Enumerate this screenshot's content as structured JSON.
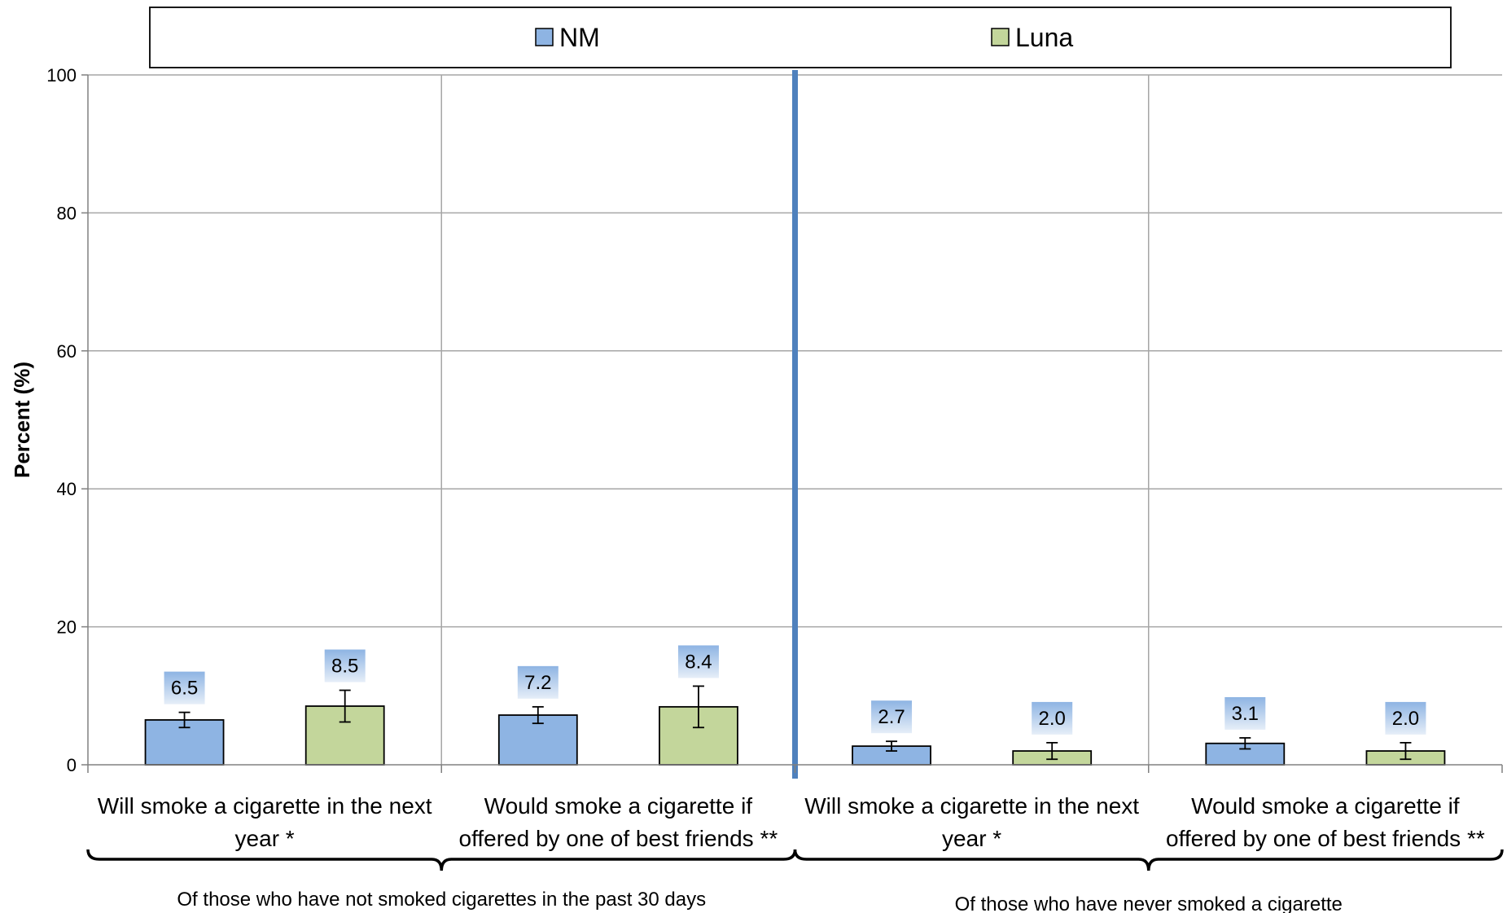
{
  "chart_data": {
    "type": "bar",
    "ylabel": "Percent (%)",
    "ylim": [
      0,
      100
    ],
    "yticks": [
      0,
      20,
      40,
      60,
      80,
      100
    ],
    "grid": true,
    "legend_position": "top",
    "categories": [
      [
        "Will smoke a cigarette in the next",
        "year *"
      ],
      [
        "Would smoke a cigarette if",
        "offered by one of best friends **"
      ],
      [
        "Will smoke a cigarette in the next",
        "year *"
      ],
      [
        "Would smoke a cigarette if",
        "offered by one of best friends **"
      ]
    ],
    "groups": [
      {
        "label": "Of those who have not smoked cigarettes in the past 30 days",
        "categories": [
          0,
          1
        ]
      },
      {
        "label": "Of those who have never smoked a cigarette",
        "categories": [
          2,
          3
        ]
      }
    ],
    "series": [
      {
        "name": "NM",
        "color": "#8EB4E3",
        "values": [
          6.5,
          7.2,
          2.7,
          3.1
        ],
        "labels": [
          "6.5",
          "7.2",
          "2.7",
          "3.1"
        ],
        "error_low": [
          5.4,
          6.0,
          2.0,
          2.3
        ],
        "error_high": [
          7.6,
          8.4,
          3.4,
          3.9
        ]
      },
      {
        "name": "Luna",
        "color": "#C3D69B",
        "values": [
          8.5,
          8.4,
          2.0,
          2.0
        ],
        "labels": [
          "8.5",
          "8.4",
          "2.0",
          "2.0"
        ],
        "error_low": [
          6.2,
          5.4,
          0.8,
          0.8
        ],
        "error_high": [
          10.8,
          11.4,
          3.2,
          3.2
        ]
      }
    ],
    "colors": {
      "divider": "#4F81BD",
      "grid": "#A6A6A6",
      "axis": "#808080",
      "label_bg_top": "#8EB4E3",
      "label_bg_bottom": "#E6EEF8"
    }
  }
}
